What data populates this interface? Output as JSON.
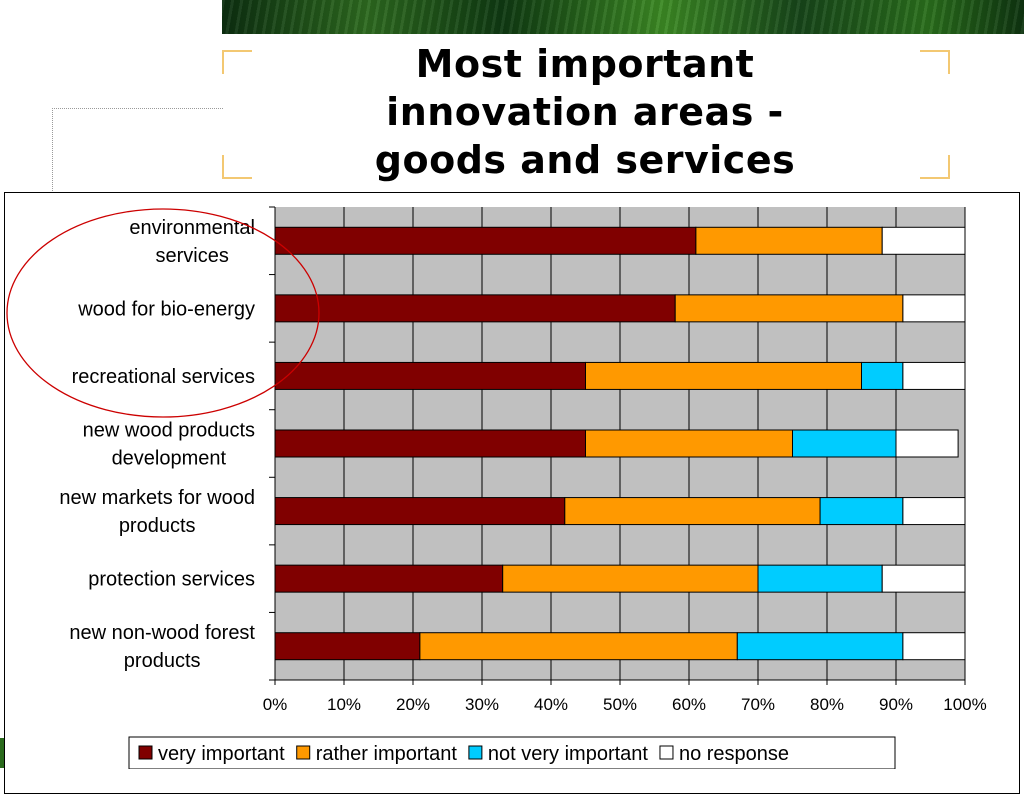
{
  "slide": {
    "title_lines": [
      "Most important",
      "innovation areas -",
      "goods and services"
    ]
  },
  "colors": {
    "very_important": "#800000",
    "rather_important": "#FF9900",
    "not_very_important": "#00CCFF",
    "no_response": "#FFFFFF",
    "plot_background": "#C0C0C0",
    "highlight_ellipse": "#CC0000"
  },
  "chart_data": {
    "type": "bar",
    "orientation": "horizontal",
    "stacked": "percent",
    "categories": [
      [
        "environmental",
        "services"
      ],
      [
        "wood for bio-energy"
      ],
      [
        "recreational services"
      ],
      [
        "new wood products",
        "development"
      ],
      [
        "new markets for wood",
        "products"
      ],
      [
        "protection services"
      ],
      [
        "new non-wood forest",
        "products"
      ]
    ],
    "series": [
      {
        "name": "very important",
        "color": "#800000",
        "values": [
          61,
          58,
          45,
          45,
          42,
          33,
          21
        ]
      },
      {
        "name": "rather important",
        "color": "#FF9900",
        "values": [
          27,
          33,
          40,
          30,
          37,
          37,
          46
        ]
      },
      {
        "name": "not very important",
        "color": "#00CCFF",
        "values": [
          0,
          0,
          6,
          15,
          12,
          18,
          24
        ]
      },
      {
        "name": "no response",
        "color": "#FFFFFF",
        "values": [
          12,
          9,
          9,
          9,
          9,
          12,
          9
        ]
      }
    ],
    "xlim": [
      0,
      100
    ],
    "x_ticks": [
      "0%",
      "10%",
      "20%",
      "30%",
      "40%",
      "50%",
      "60%",
      "70%",
      "80%",
      "90%",
      "100%"
    ],
    "grid": true,
    "legend": "bottom",
    "annotation": "red ellipse highlighting the top three categories"
  }
}
